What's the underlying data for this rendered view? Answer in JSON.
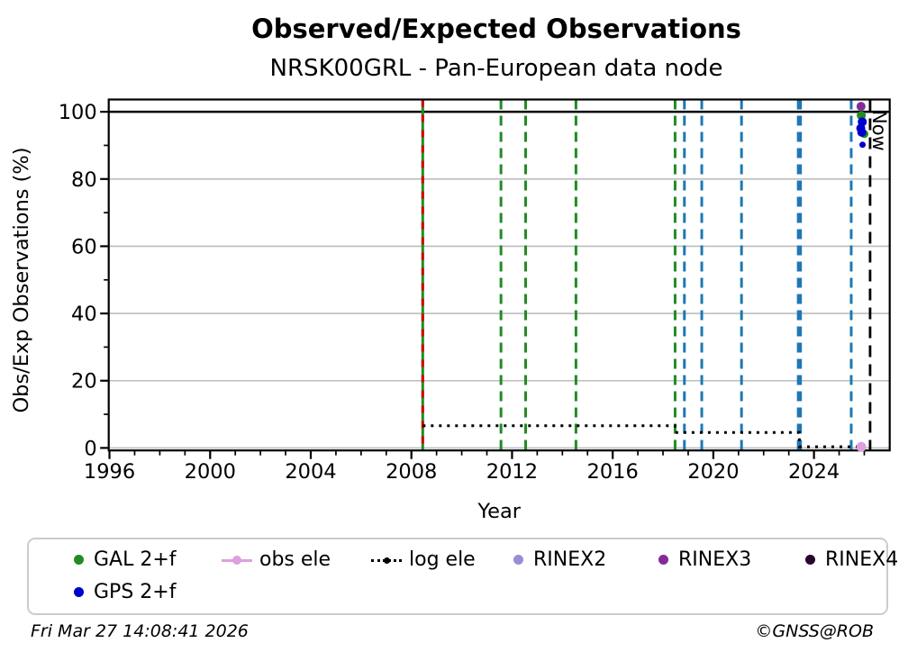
{
  "footer": {
    "timestamp": "Fri Mar 27 14:08:41 2026",
    "copyright": "©GNSS@ROB"
  },
  "colors": {
    "grid": "#bdbdbd",
    "axis": "#000000",
    "gal_green": "#228B22",
    "gps_blue": "#0000CD",
    "event_blue": "#1f77b4",
    "event_red": "#D40000",
    "obs_ele_plum": "#DDA0DD",
    "log_ele_black": "#000000",
    "rinex2": "#9590D5",
    "rinex3": "#822C99",
    "rinex4": "#26082B"
  },
  "legend": {
    "items": [
      {
        "label": "GAL 2+f",
        "color": "#228B22",
        "marker": "dot"
      },
      {
        "label": "obs ele",
        "color": "#DDA0DD",
        "marker": "line-dot"
      },
      {
        "label": "log ele",
        "color": "#000000",
        "marker": "dotted-line"
      },
      {
        "label": "RINEX2",
        "color": "#9590D5",
        "marker": "dot"
      },
      {
        "label": "RINEX3",
        "color": "#822C99",
        "marker": "dot"
      },
      {
        "label": "RINEX4",
        "color": "#26082B",
        "marker": "dot"
      },
      {
        "label": "GPS 2+f",
        "color": "#0000CD",
        "marker": "dot"
      }
    ]
  },
  "chart_data": {
    "type": "scatter",
    "title": "Observed/Expected Observations",
    "subtitle": "NRSK00GRL - Pan-European data node",
    "xlabel": "Year",
    "ylabel": "Obs/Exp Observations (%)",
    "xlim": [
      1995.97,
      2027.01
    ],
    "ylim": [
      -0.75,
      103.65
    ],
    "x_major_ticks": [
      1996,
      2000,
      2004,
      2008,
      2012,
      2016,
      2020,
      2024
    ],
    "x_minor_step": 1,
    "y_major_ticks": [
      0,
      20,
      40,
      60,
      80,
      100
    ],
    "y_minor_ticks": [
      10,
      30,
      50,
      70,
      90
    ],
    "gridlines_y": [
      0,
      20,
      40,
      60,
      80
    ],
    "hline": 100,
    "grid": "horizontal-only",
    "legend_position": "below",
    "now": {
      "label": "Now",
      "year": 2026.23
    },
    "event_lines": [
      {
        "year": 2008.45,
        "color": "#228B22",
        "style": "solid",
        "width": 3
      },
      {
        "year": 2008.45,
        "color": "#D40000",
        "style": "dashed-overlay",
        "width": 3
      },
      {
        "year": 2011.56,
        "color": "#228B22",
        "style": "dashed",
        "width": 3
      },
      {
        "year": 2012.54,
        "color": "#228B22",
        "style": "dashed",
        "width": 3
      },
      {
        "year": 2014.54,
        "color": "#228B22",
        "style": "dashed",
        "width": 3
      },
      {
        "year": 2018.48,
        "color": "#228B22",
        "style": "dashed",
        "width": 3
      },
      {
        "year": 2018.85,
        "color": "#1f77b4",
        "style": "dashed",
        "width": 3
      },
      {
        "year": 2019.54,
        "color": "#1f77b4",
        "style": "dashed",
        "width": 3
      },
      {
        "year": 2021.12,
        "color": "#1f77b4",
        "style": "dashed",
        "width": 3
      },
      {
        "year": 2023.42,
        "color": "#1f77b4",
        "style": "dashed",
        "width": 5.5
      },
      {
        "year": 2025.48,
        "color": "#1f77b4",
        "style": "dashed",
        "width": 3
      }
    ],
    "log_ele_steps": [
      [
        2008.45,
        6.6
      ],
      [
        2018.48,
        6.6
      ],
      [
        2018.48,
        4.6
      ],
      [
        2023.42,
        4.6
      ],
      [
        2023.42,
        0.35
      ],
      [
        2025.93,
        0.35
      ]
    ],
    "series": [
      {
        "name": "GAL 2+f",
        "color": "#228B22",
        "points": [
          [
            2025.88,
            98.9
          ],
          [
            2026.0,
            93.4,
            4.5
          ]
        ]
      },
      {
        "name": "GPS 2+f",
        "color": "#0000CD",
        "points": [
          [
            2025.92,
            97.0
          ],
          [
            2025.86,
            95.1
          ],
          [
            2025.9,
            93.9
          ],
          [
            2025.93,
            90.2,
            3.5
          ]
        ]
      },
      {
        "name": "RINEX2",
        "color": "#9590D5",
        "points": []
      },
      {
        "name": "RINEX3",
        "color": "#822C99",
        "points": [
          [
            2025.87,
            101.6
          ]
        ]
      },
      {
        "name": "RINEX4",
        "color": "#26082B",
        "points": []
      },
      {
        "name": "obs ele",
        "color": "#DDA0DD",
        "points": [
          [
            2025.88,
            0.3,
            5.5
          ]
        ]
      }
    ]
  }
}
